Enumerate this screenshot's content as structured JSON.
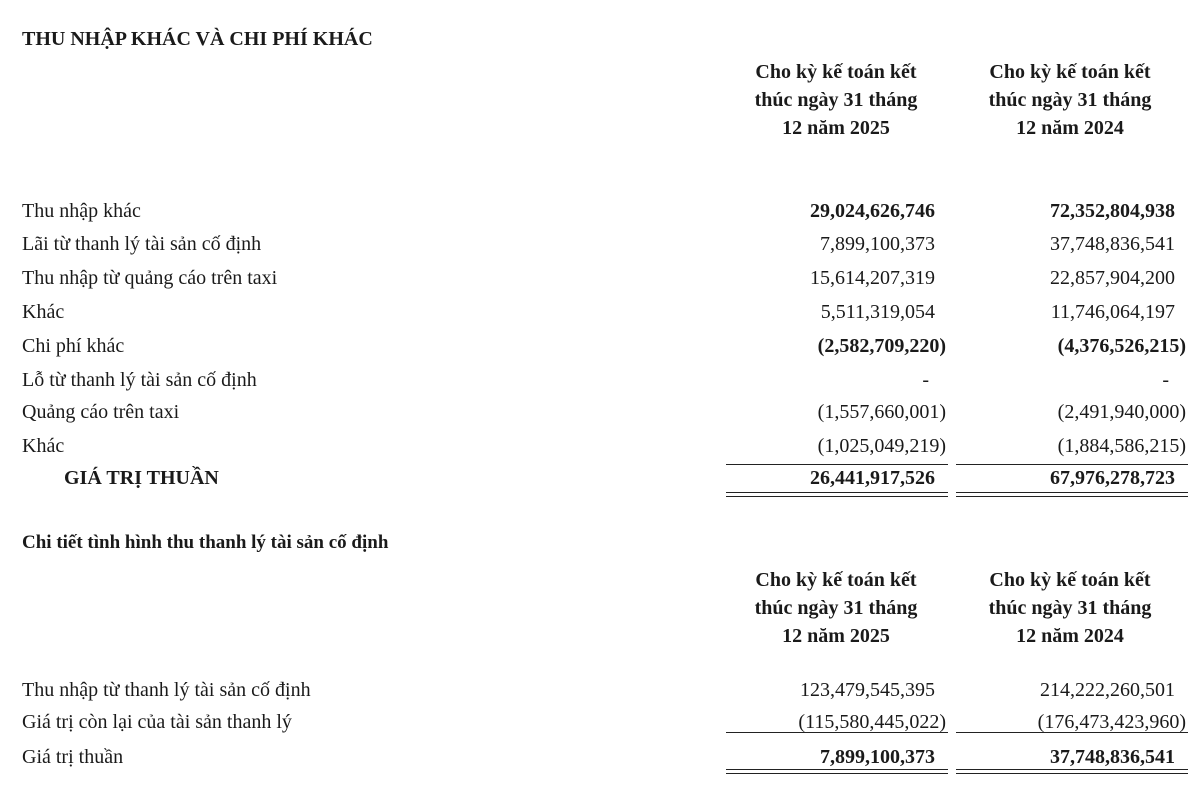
{
  "section1": {
    "title": "THU NHẬP KHÁC VÀ CHI PHÍ KHÁC",
    "col_headers": [
      [
        "Cho kỳ kế toán kết",
        "thúc ngày 31 tháng",
        "12 năm 2025"
      ],
      [
        "Cho kỳ kế toán kết",
        "thúc ngày 31 tháng",
        "12 năm 2024"
      ]
    ],
    "rows": [
      {
        "label": "Thu nhập khác",
        "v2025": "29,024,626,746",
        "v2024": "72,352,804,938",
        "bold": true
      },
      {
        "label": "Lãi từ thanh lý tài sản cố định",
        "v2025": "7,899,100,373",
        "v2024": "37,748,836,541"
      },
      {
        "label": "Thu nhập từ quảng cáo trên taxi",
        "v2025": "15,614,207,319",
        "v2024": "22,857,904,200"
      },
      {
        "label": "Khác",
        "v2025": "5,511,319,054",
        "v2024": "11,746,064,197"
      },
      {
        "label": "Chi phí khác",
        "v2025": "(2,582,709,220)",
        "v2024": "(4,376,526,215)",
        "bold": true
      },
      {
        "label": "Lỗ từ thanh lý tài sản cố định",
        "v2025": "-",
        "v2024": "-"
      },
      {
        "label": "Quảng cáo trên taxi",
        "v2025": "(1,557,660,001)",
        "v2024": "(2,491,940,000)"
      },
      {
        "label": "Khác",
        "v2025": "(1,025,049,219)",
        "v2024": "(1,884,586,215)"
      }
    ],
    "total": {
      "label": "GIÁ TRỊ THUẦN",
      "v2025": "26,441,917,526",
      "v2024": "67,976,278,723"
    }
  },
  "section2": {
    "title": "Chi tiết tình hình thu thanh lý tài sản cố định",
    "col_headers": [
      [
        "Cho kỳ kế toán kết",
        "thúc ngày 31 tháng",
        "12 năm 2025"
      ],
      [
        "Cho kỳ kế toán kết",
        "thúc ngày 31 tháng",
        "12 năm 2024"
      ]
    ],
    "rows": [
      {
        "label": "Thu nhập từ thanh lý tài sản cố định",
        "v2025": "123,479,545,395",
        "v2024": "214,222,260,501"
      },
      {
        "label": "Giá trị còn lại của tài sản thanh lý",
        "v2025": "(115,580,445,022)",
        "v2024": "(176,473,423,960)"
      }
    ],
    "total": {
      "label": "Giá trị thuần",
      "v2025": "7,899,100,373",
      "v2024": "37,748,836,541"
    }
  }
}
